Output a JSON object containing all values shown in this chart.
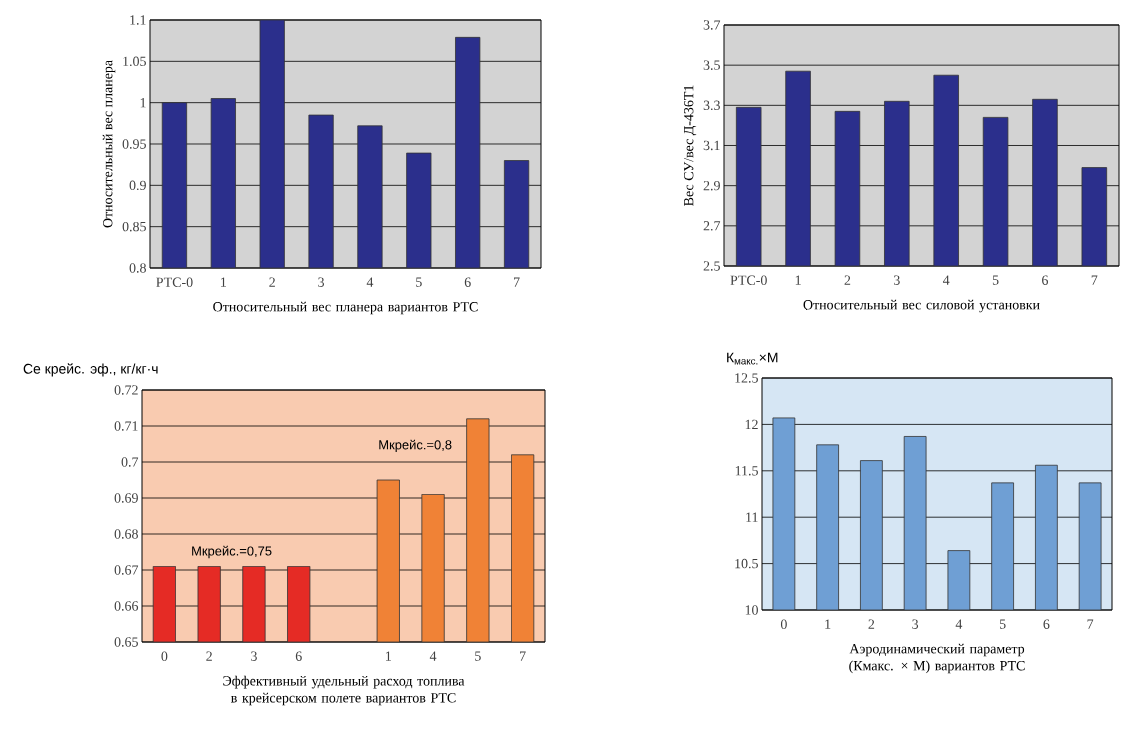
{
  "chart_data": [
    {
      "type": "bar",
      "xlabel": "Относительный вес планера вариантов РТС",
      "ylabel": "Относительный вес планера",
      "categories": [
        "РТС-0",
        "1",
        "2",
        "3",
        "4",
        "5",
        "6",
        "7"
      ],
      "values": [
        1.0,
        1.005,
        1.1,
        0.985,
        0.972,
        0.939,
        1.079,
        0.93
      ],
      "color": "#2b2f8c",
      "ylim": [
        0.8,
        1.1
      ],
      "yticks": [
        0.8,
        0.85,
        0.9,
        0.95,
        1,
        1.05,
        1.1
      ],
      "grid": "y"
    },
    {
      "type": "bar",
      "xlabel": "Относительный вес силовой установки",
      "ylabel": "Вес СУ/вес Д-436Т1",
      "categories": [
        "РТС-0",
        "1",
        "2",
        "3",
        "4",
        "5",
        "6",
        "7"
      ],
      "values": [
        3.29,
        3.47,
        3.27,
        3.32,
        3.45,
        3.24,
        3.33,
        2.99
      ],
      "color": "#2b2f8c",
      "ylim": [
        2.5,
        3.7
      ],
      "yticks": [
        2.5,
        2.7,
        2.9,
        3.1,
        3.3,
        3.5,
        3.7
      ],
      "grid": "y"
    },
    {
      "type": "bar",
      "xlabel": "Эффективный удельный расход топлива в крейсерском полете вариантов РТС",
      "ylabel": "Се крейс. эф., кг/кг·ч",
      "categories": [
        "0",
        "2",
        "3",
        "6",
        null,
        "1",
        "4",
        "5",
        "7"
      ],
      "values": [
        0.671,
        0.671,
        0.671,
        0.671,
        null,
        0.695,
        0.691,
        0.712,
        0.702
      ],
      "colors": [
        "#e52b25",
        "#e52b25",
        "#e52b25",
        "#e52b25",
        "#e52b25",
        "#f08236",
        "#f08236",
        "#f08236",
        "#f08236"
      ],
      "ylim": [
        0.65,
        0.72
      ],
      "yticks": [
        0.65,
        0.66,
        0.67,
        0.68,
        0.69,
        0.7,
        0.71,
        0.72
      ],
      "grid": "y",
      "annotations": [
        "Мкрейс.=0,75",
        "Мкрейс.=0,8"
      ]
    },
    {
      "type": "bar",
      "xlabel": "Аэродинамический параметр (Кмакс. × М) вариантов РТС",
      "ylabel": "К$_{макс.}$×М",
      "categories": [
        "0",
        "1",
        "2",
        "3",
        "4",
        "5",
        "6",
        "7"
      ],
      "values": [
        12.07,
        11.78,
        11.61,
        11.87,
        10.64,
        11.37,
        11.56,
        11.37
      ],
      "color": "#6f9fd4",
      "ylim": [
        10,
        12.5
      ],
      "yticks": [
        10,
        10.5,
        11,
        11.5,
        12,
        12.5
      ],
      "grid": "y"
    }
  ]
}
